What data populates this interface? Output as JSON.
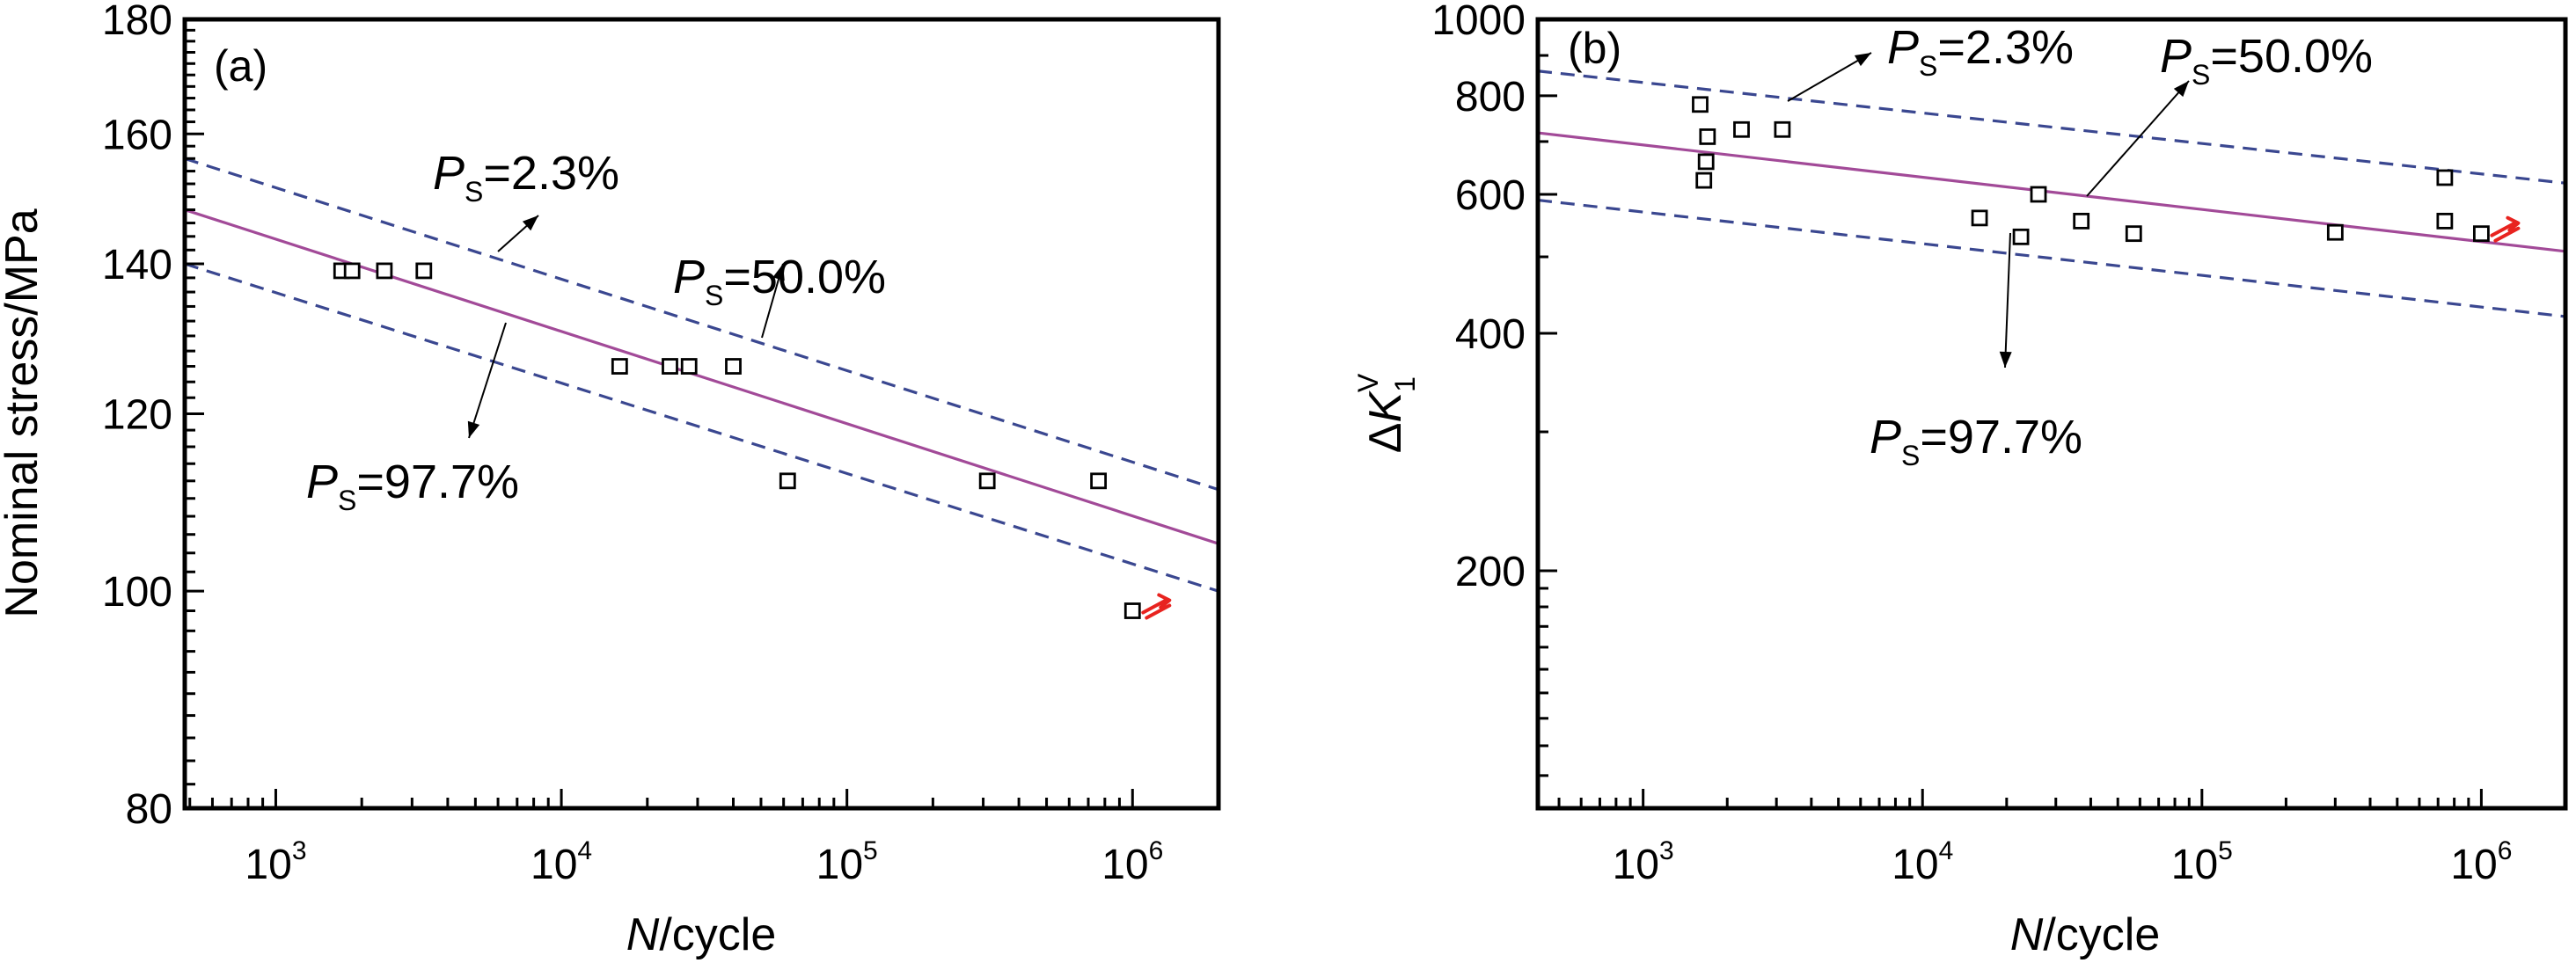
{
  "chart_data": [
    {
      "panel": "(a)",
      "type": "scatter",
      "xscale": "log",
      "yscale": "log",
      "xlim": [
        480,
        2000000
      ],
      "ylim": [
        80,
        180
      ],
      "xlabel": "N/cycle",
      "xlabel_italic": "N",
      "xlabel_rest": "/cycle",
      "ylabel": "Nominal stress/MPa",
      "x_ticks": [
        {
          "value": 1000,
          "base": "10",
          "exp": "3"
        },
        {
          "value": 10000,
          "base": "10",
          "exp": "4"
        },
        {
          "value": 100000,
          "base": "10",
          "exp": "5"
        },
        {
          "value": 1000000,
          "base": "10",
          "exp": "6"
        }
      ],
      "y_ticks": [
        {
          "value": 80,
          "label": "80"
        },
        {
          "value": 100,
          "label": "100"
        },
        {
          "value": 120,
          "label": "120"
        },
        {
          "value": 140,
          "label": "140"
        },
        {
          "value": 160,
          "label": "160"
        },
        {
          "value": 180,
          "label": "180"
        }
      ],
      "points": [
        {
          "x": 1700,
          "y": 139
        },
        {
          "x": 1850,
          "y": 139
        },
        {
          "x": 2400,
          "y": 139
        },
        {
          "x": 3300,
          "y": 139
        },
        {
          "x": 16000,
          "y": 126
        },
        {
          "x": 24000,
          "y": 126
        },
        {
          "x": 28000,
          "y": 126
        },
        {
          "x": 40000,
          "y": 126
        },
        {
          "x": 62000,
          "y": 112
        },
        {
          "x": 310000,
          "y": 112
        },
        {
          "x": 760000,
          "y": 112
        },
        {
          "x": 1000000,
          "y": 98,
          "runout": true
        }
      ],
      "series": [
        {
          "p_label": "2.3%",
          "style": "dashed",
          "color": "#3a4790",
          "line": [
            [
              480,
              156
            ],
            [
              2000000,
              111
            ]
          ]
        },
        {
          "p_label": "50.0%",
          "style": "solid",
          "color": "#a24a98",
          "line": [
            [
              480,
              148
            ],
            [
              2000000,
              105
            ]
          ]
        },
        {
          "p_label": "97.7%",
          "style": "dashed",
          "color": "#3a4790",
          "line": [
            [
              480,
              140
            ],
            [
              2000000,
              100
            ]
          ]
        }
      ],
      "annotations": [
        {
          "label_main": "P",
          "label_sub": "S",
          "label_value": "=2.3%"
        },
        {
          "label_main": "P",
          "label_sub": "S",
          "label_value": "=50.0%"
        },
        {
          "label_main": "P",
          "label_sub": "S",
          "label_value": "=97.7%"
        }
      ],
      "runout_color": "#e8231f"
    },
    {
      "panel": "(b)",
      "type": "scatter",
      "xscale": "log",
      "yscale": "log",
      "xlim": [
        420,
        2000000
      ],
      "ylim": [
        100,
        1000
      ],
      "xlabel": "N/cycle",
      "xlabel_italic": "N",
      "xlabel_rest": "/cycle",
      "ylabel": "ΔK1V",
      "ylabel_delta": "Δ",
      "ylabel_italic": "K",
      "ylabel_sub": "1",
      "ylabel_sup": "V",
      "x_ticks": [
        {
          "value": 1000,
          "base": "10",
          "exp": "3"
        },
        {
          "value": 10000,
          "base": "10",
          "exp": "4"
        },
        {
          "value": 100000,
          "base": "10",
          "exp": "5"
        },
        {
          "value": 1000000,
          "base": "10",
          "exp": "6"
        }
      ],
      "y_ticks": [
        {
          "value": 200,
          "label": "200"
        },
        {
          "value": 400,
          "label": "400"
        },
        {
          "value": 600,
          "label": "600"
        },
        {
          "value": 800,
          "label": "800"
        },
        {
          "value": 1000,
          "label": "1000"
        }
      ],
      "points": [
        {
          "x": 1600,
          "y": 780
        },
        {
          "x": 1700,
          "y": 710
        },
        {
          "x": 1680,
          "y": 660
        },
        {
          "x": 1650,
          "y": 625
        },
        {
          "x": 2250,
          "y": 725
        },
        {
          "x": 3150,
          "y": 725
        },
        {
          "x": 16000,
          "y": 560
        },
        {
          "x": 22500,
          "y": 530
        },
        {
          "x": 26000,
          "y": 600
        },
        {
          "x": 37000,
          "y": 555
        },
        {
          "x": 57000,
          "y": 535
        },
        {
          "x": 300000,
          "y": 537
        },
        {
          "x": 740000,
          "y": 630
        },
        {
          "x": 740000,
          "y": 555
        },
        {
          "x": 1000000,
          "y": 535,
          "runout": true
        }
      ],
      "series": [
        {
          "p_label": "2.3%",
          "style": "dashed",
          "color": "#3a4790",
          "line": [
            [
              420,
              860
            ],
            [
              2000000,
              620
            ]
          ]
        },
        {
          "p_label": "50.0%",
          "style": "solid",
          "color": "#a24a98",
          "line": [
            [
              420,
              718
            ],
            [
              2000000,
              508
            ]
          ]
        },
        {
          "p_label": "97.7%",
          "style": "dashed",
          "color": "#3a4790",
          "line": [
            [
              420,
              590
            ],
            [
              2000000,
              420
            ]
          ]
        }
      ],
      "annotations": [
        {
          "label_main": "P",
          "label_sub": "S",
          "label_value": "=2.3%"
        },
        {
          "label_main": "P",
          "label_sub": "S",
          "label_value": "=50.0%"
        },
        {
          "label_main": "P",
          "label_sub": "S",
          "label_value": "=97.7%"
        }
      ],
      "runout_color": "#e8231f"
    }
  ]
}
